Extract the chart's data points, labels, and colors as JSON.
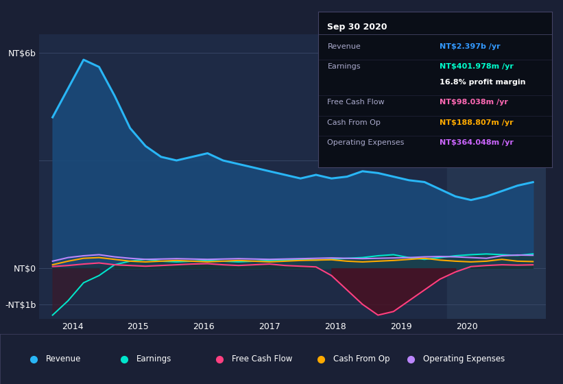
{
  "bg_color": "#1a2035",
  "chart_bg": "#1e2a45",
  "title": "Sep 30 2020",
  "ylabel_top": "NT$6b",
  "ylabel_zero": "NT$0",
  "ylabel_neg": "-NT$1b",
  "ylim": [
    -1400,
    6500
  ],
  "xlim_start": 2013.5,
  "xlim_end": 2021.2,
  "xticks": [
    2014,
    2015,
    2016,
    2017,
    2018,
    2019,
    2020
  ],
  "highlight_start": 2019.7,
  "highlight_end": 2021.2,
  "revenue_color": "#29b6f6",
  "revenue_fill": "#1a4a7a",
  "earnings_color": "#00e5cc",
  "fcf_color": "#ff4081",
  "cashfromop_color": "#ffaa00",
  "opex_color": "#bb86fc",
  "info_box_title": "Sep 30 2020",
  "info_rows": [
    {
      "label": "Revenue",
      "value": "NT$2.397b /yr",
      "value_color": "#3399ff",
      "label_color": "#aaaacc",
      "bold_value": true
    },
    {
      "label": "Earnings",
      "value": "NT$401.978m /yr",
      "value_color": "#00ffcc",
      "label_color": "#aaaacc",
      "bold_value": true
    },
    {
      "label": "",
      "value": "16.8% profit margin",
      "value_color": "#ffffff",
      "label_color": "#aaaacc",
      "bold_value": true
    },
    {
      "label": "Free Cash Flow",
      "value": "NT$98.038m /yr",
      "value_color": "#ff69b4",
      "label_color": "#aaaacc",
      "bold_value": true
    },
    {
      "label": "Cash From Op",
      "value": "NT$188.807m /yr",
      "value_color": "#ffaa00",
      "label_color": "#aaaacc",
      "bold_value": true
    },
    {
      "label": "Operating Expenses",
      "value": "NT$364.048m /yr",
      "value_color": "#cc66ff",
      "label_color": "#aaaacc",
      "bold_value": true
    }
  ],
  "legend_items": [
    {
      "label": "Revenue",
      "color": "#29b6f6"
    },
    {
      "label": "Earnings",
      "color": "#00e5cc"
    },
    {
      "label": "Free Cash Flow",
      "color": "#ff4081"
    },
    {
      "label": "Cash From Op",
      "color": "#ffaa00"
    },
    {
      "label": "Operating Expenses",
      "color": "#bb86fc"
    }
  ],
  "x_start": 2013.7,
  "x_end": 2021.0,
  "n_points": 32,
  "revenue": [
    4200,
    5000,
    5800,
    5600,
    4800,
    3900,
    3400,
    3100,
    3000,
    3100,
    3200,
    3000,
    2900,
    2800,
    2700,
    2600,
    2500,
    2600,
    2500,
    2550,
    2700,
    2650,
    2550,
    2450,
    2400,
    2200,
    2000,
    1900,
    2000,
    2150,
    2300,
    2397
  ],
  "earnings": [
    -1300,
    -900,
    -400,
    -200,
    100,
    200,
    250,
    200,
    180,
    200,
    220,
    200,
    180,
    200,
    220,
    230,
    240,
    230,
    250,
    280,
    300,
    350,
    380,
    300,
    250,
    300,
    350,
    380,
    400,
    380,
    360,
    402
  ],
  "fcf": [
    50,
    80,
    120,
    150,
    100,
    80,
    60,
    80,
    100,
    120,
    130,
    100,
    80,
    100,
    120,
    80,
    60,
    40,
    -200,
    -600,
    -1000,
    -1300,
    -1200,
    -900,
    -600,
    -300,
    -100,
    50,
    80,
    100,
    90,
    98
  ],
  "cashfromop": [
    100,
    200,
    280,
    300,
    250,
    200,
    180,
    200,
    220,
    200,
    180,
    200,
    220,
    200,
    180,
    200,
    220,
    230,
    240,
    200,
    180,
    200,
    220,
    250,
    280,
    230,
    200,
    180,
    200,
    250,
    200,
    189
  ],
  "opex": [
    200,
    300,
    350,
    380,
    320,
    280,
    250,
    260,
    270,
    260,
    250,
    260,
    270,
    260,
    250,
    260,
    270,
    280,
    290,
    280,
    270,
    280,
    290,
    300,
    320,
    330,
    320,
    300,
    280,
    350,
    370,
    364
  ]
}
